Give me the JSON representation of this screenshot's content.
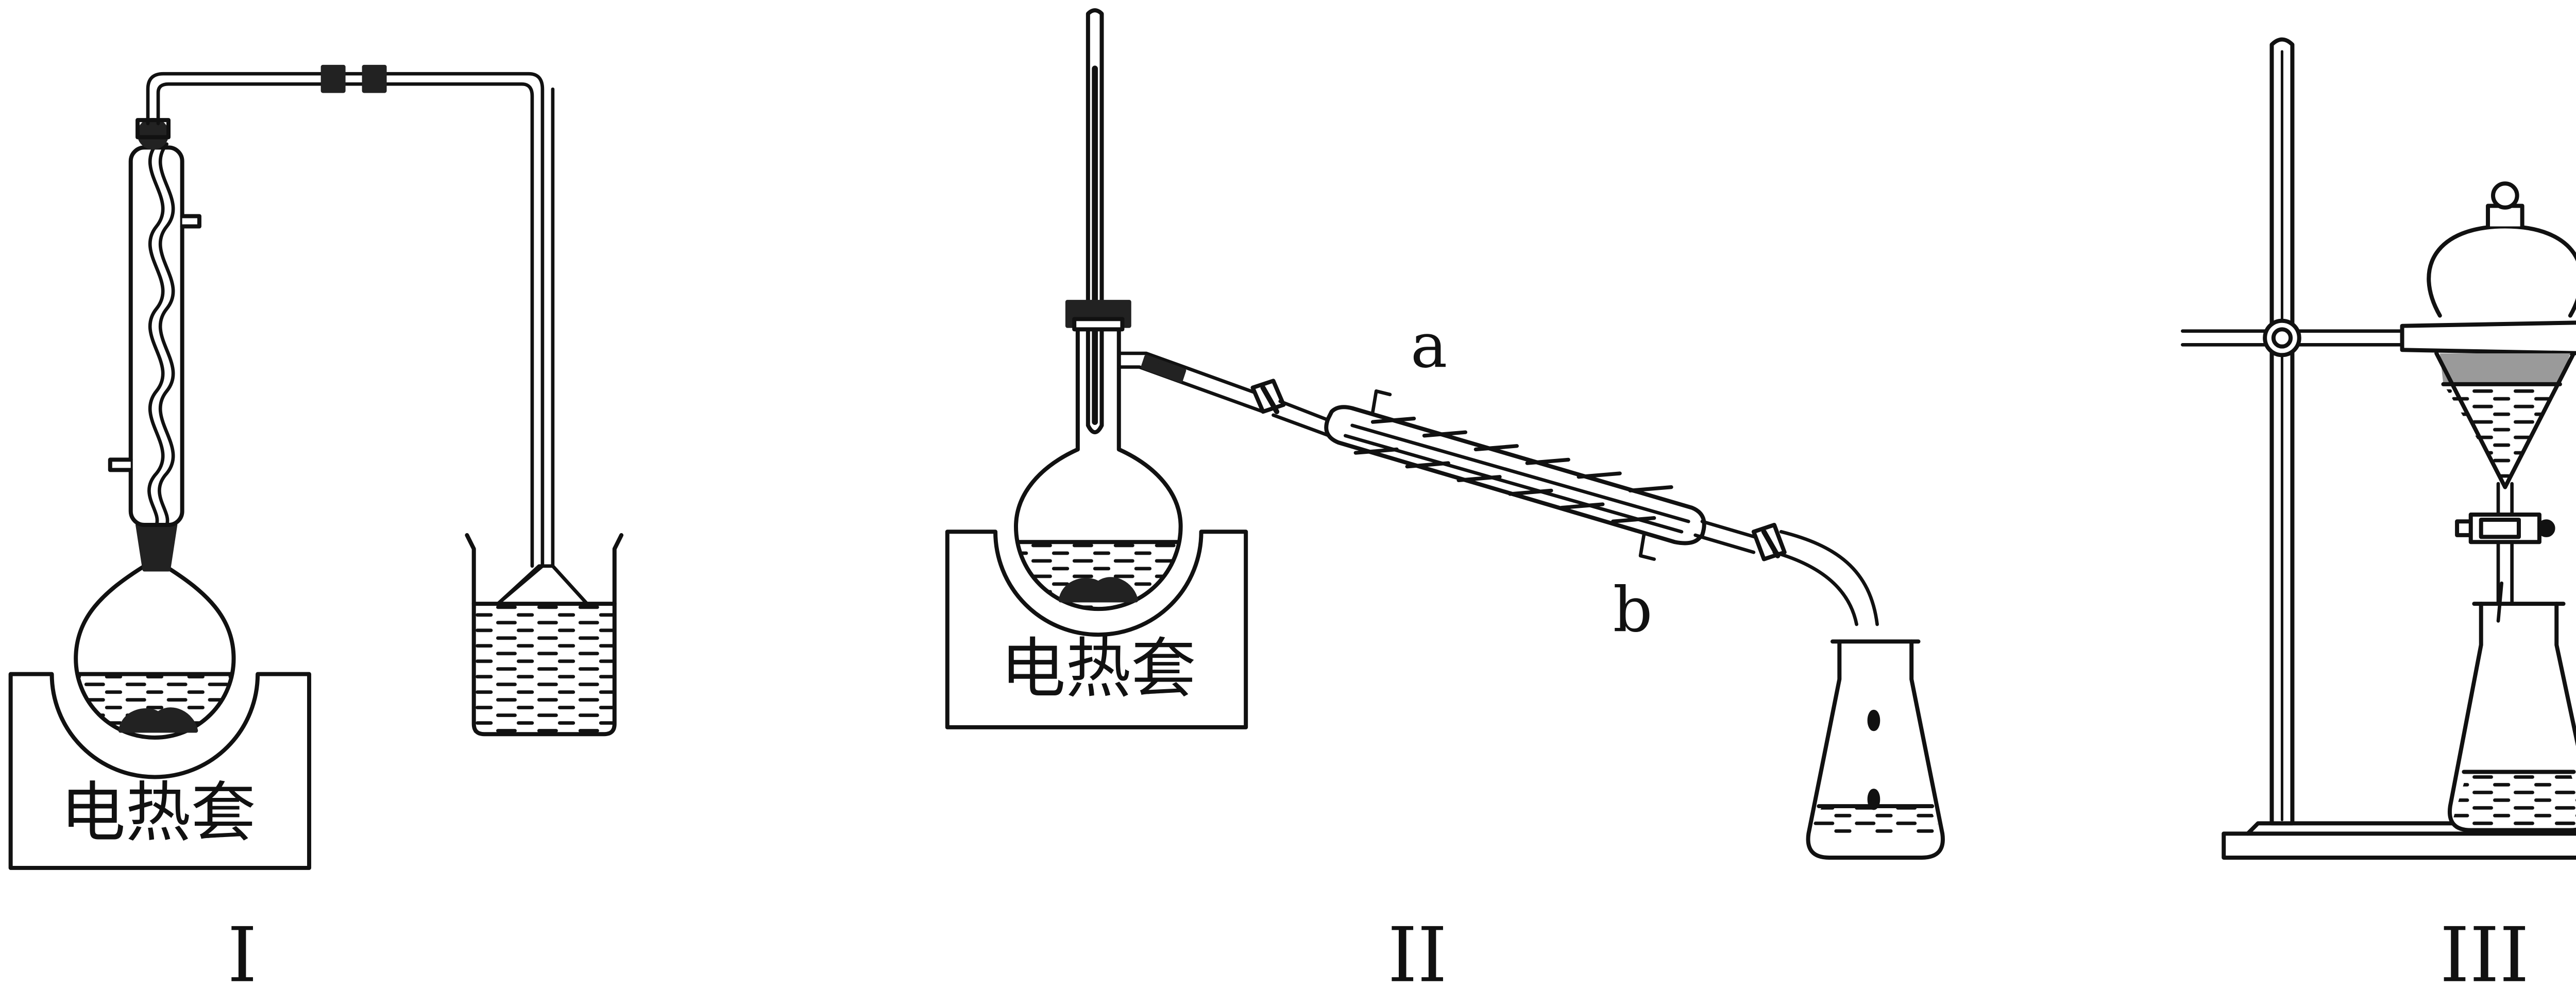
{
  "labels": {
    "heater_1": "电热套",
    "heater_2": "电热套",
    "inlet_a": "a",
    "outlet_b": "b",
    "caption_1": "I",
    "caption_2": "II",
    "caption_3": "III"
  },
  "colors": {
    "stroke": "#111111",
    "fill": "#ffffff",
    "shade": "#9a9a9a"
  }
}
